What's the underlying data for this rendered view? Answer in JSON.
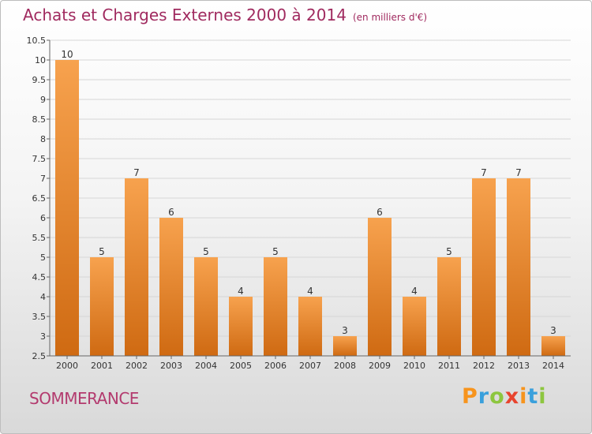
{
  "title": "Achats et Charges Externes 2000 à 2014",
  "subtitle": "(en milliers d'€)",
  "commune": "SOMMERANCE",
  "logo": {
    "letters": [
      "P",
      "r",
      "o",
      "x",
      "i",
      "t",
      "i"
    ],
    "colors": [
      "#f7941d",
      "#3aa0dc",
      "#8dc63f",
      "#e8442e",
      "#f7941d",
      "#3aa0dc",
      "#8dc63f"
    ]
  },
  "colors": {
    "bar_top": "#f7a24e",
    "bar_bottom": "#cf6a12",
    "title": "#a02a5f",
    "grid": "#d6d6d6"
  },
  "chart_data": {
    "type": "bar",
    "title": "Achats et Charges Externes 2000 à 2014",
    "subtitle": "(en milliers d'€)",
    "categories": [
      "2000",
      "2001",
      "2002",
      "2003",
      "2004",
      "2005",
      "2006",
      "2007",
      "2008",
      "2009",
      "2010",
      "2011",
      "2012",
      "2013",
      "2014"
    ],
    "values": [
      10,
      5,
      7,
      6,
      5,
      4,
      5,
      4,
      3,
      6,
      4,
      5,
      7,
      7,
      3
    ],
    "ylim": [
      2.5,
      10.5
    ],
    "yticks": [
      "2.5",
      "3",
      "3.5",
      "4",
      "4.5",
      "5",
      "5.5",
      "6",
      "6.5",
      "7",
      "7.5",
      "8",
      "8.5",
      "9",
      "9.5",
      "10",
      "10.5"
    ],
    "grid": true,
    "legend": "none"
  }
}
